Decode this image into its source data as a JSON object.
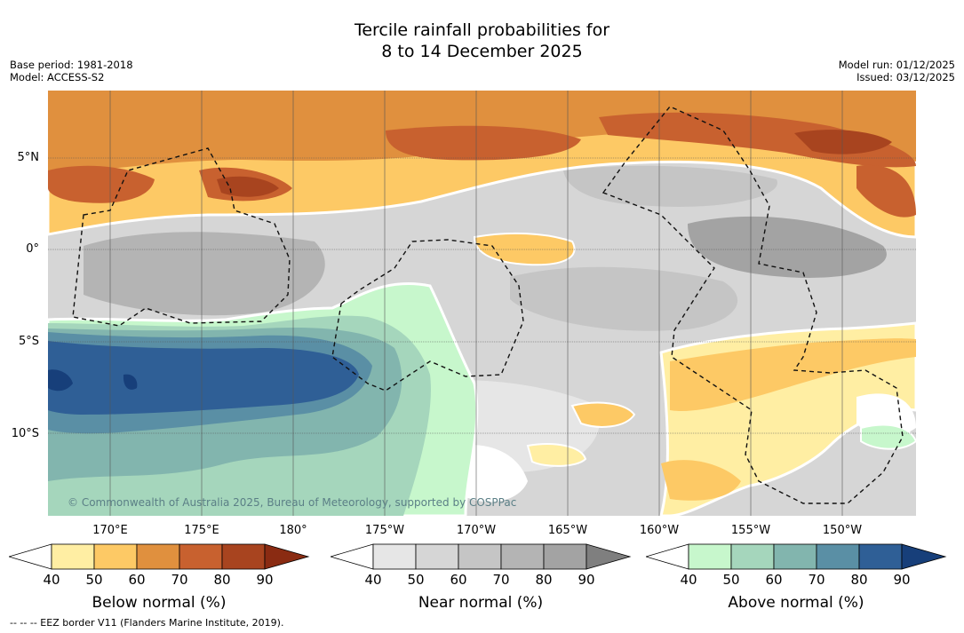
{
  "title": {
    "line1": "Tercile rainfall probabilities for",
    "line2": "8 to 14 December 2025"
  },
  "meta_left": {
    "base_period": "Base period: 1981-2018",
    "model": "Model: ACCESS-S2"
  },
  "meta_right": {
    "model_run": "Model run: 01/12/2025",
    "issued": "Issued: 03/12/2025"
  },
  "map": {
    "lat_labels": [
      "5°N",
      "0°",
      "5°S",
      "10°S"
    ],
    "lon_labels": [
      "170°E",
      "175°E",
      "180°",
      "175°W",
      "170°W",
      "165°W",
      "160°W",
      "155°W",
      "150°W"
    ],
    "copyright": "© Commonwealth of Australia 2025, Bureau of Meteorology, supported by COSPPac",
    "colors": {
      "water_hi": "#2f5f96",
      "water_mid": "#5a8fa5",
      "green": "#a5d6bc",
      "grey": "#cfcfcf",
      "orange": "#e0903e",
      "brown": "#c05c2c"
    }
  },
  "colorbars": [
    {
      "title": "Below normal (%)",
      "ticks": [
        "40",
        "50",
        "60",
        "70",
        "80",
        "90"
      ],
      "colors": [
        "#ffeea3",
        "#fdc965",
        "#e0903e",
        "#c8612f",
        "#a8441f",
        "#8a2b12"
      ]
    },
    {
      "title": "Near normal (%)",
      "ticks": [
        "40",
        "50",
        "60",
        "70",
        "80",
        "90"
      ],
      "colors": [
        "#e6e6e6",
        "#d6d6d6",
        "#c5c5c5",
        "#b4b4b4",
        "#a3a3a3",
        "#7f7f7f"
      ]
    },
    {
      "title": "Above normal (%)",
      "ticks": [
        "40",
        "50",
        "60",
        "70",
        "80",
        "90"
      ],
      "colors": [
        "#c7f7cc",
        "#a5d6bc",
        "#82b5ae",
        "#5a8fa5",
        "#2f5f96",
        "#173f7a"
      ]
    }
  ],
  "footer": "-- -- -- EEZ border V11 (Flanders Marine Institute, 2019)."
}
